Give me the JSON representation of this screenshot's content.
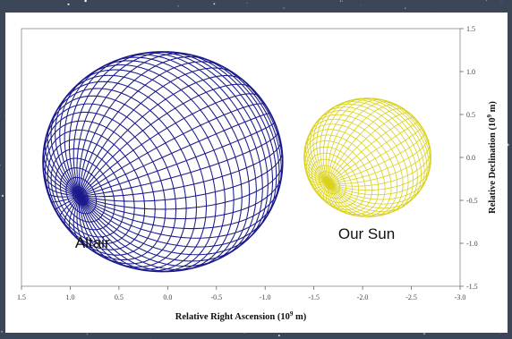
{
  "chart_data": {
    "type": "scatter",
    "title": "",
    "xlabel": "Relative Right Ascension (10",
    "xlabel_exp": "9",
    "xlabel_unit": " m)",
    "ylabel": "Relative Declination (10",
    "ylabel_exp": "9",
    "ylabel_unit": " m)",
    "xlim": [
      1.5,
      -3.0
    ],
    "ylim": [
      -1.5,
      1.5
    ],
    "x_ticks": [
      "1.5",
      "1.0",
      "0.5",
      "0.0",
      "-0.5",
      "-1.0",
      "-1.5",
      "-2.0",
      "-2.5",
      "-3.0"
    ],
    "y_ticks": [
      "1.5",
      "1.0",
      "0.5",
      "0.0",
      "-0.5",
      "-1.0",
      "-1.5"
    ],
    "grid": false,
    "objects": [
      {
        "name": "Altair",
        "color": "#1a1a8c",
        "center": [
          0.05,
          -0.05
        ],
        "radius_x": 1.23,
        "radius_y": 1.28,
        "tilt_deg": -25,
        "pole": [
          0.9,
          -0.45
        ]
      },
      {
        "name": "Our Sun",
        "color": "#d9d11a",
        "center": [
          -2.05,
          0.0
        ],
        "radius_x": 0.65,
        "radius_y": 0.69,
        "tilt_deg": 0,
        "pole": [
          -1.65,
          -0.3
        ]
      }
    ],
    "annotations": [
      {
        "text": "Altair",
        "x": 0.95,
        "y": -1.05
      },
      {
        "text": "Our Sun",
        "x": -1.75,
        "y": -0.95
      }
    ]
  }
}
